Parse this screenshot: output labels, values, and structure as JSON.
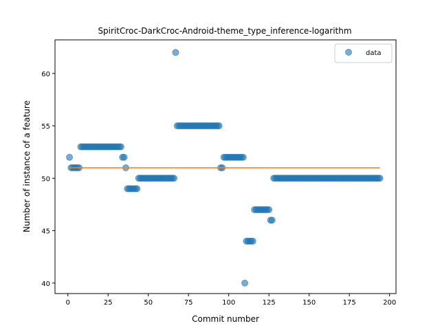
{
  "chart_data": {
    "type": "scatter",
    "title": "SpiritCroc-DarkCroc-Android-theme_type_inference-logarithm",
    "xlabel": "Commit number",
    "ylabel": "Number of instance of a feature",
    "xlim": [
      -8,
      204
    ],
    "ylim": [
      39.0,
      63.2
    ],
    "xticks": [
      0,
      25,
      50,
      75,
      100,
      125,
      150,
      175,
      200
    ],
    "yticks": [
      40,
      45,
      50,
      55,
      60
    ],
    "legend": {
      "position": "top-right",
      "entries": [
        "data"
      ]
    },
    "colors": {
      "scatter": "#1f77b4",
      "line": "#ff7f0e"
    },
    "series": [
      {
        "name": "data",
        "kind": "scatter",
        "runs": [
          {
            "from": 1,
            "to": 1,
            "y": 52
          },
          {
            "from": 2,
            "to": 7,
            "y": 51
          },
          {
            "from": 8,
            "to": 33,
            "y": 53
          },
          {
            "from": 34,
            "to": 35,
            "y": 52
          },
          {
            "from": 36,
            "to": 36,
            "y": 51
          },
          {
            "from": 37,
            "to": 43,
            "y": 49
          },
          {
            "from": 44,
            "to": 66,
            "y": 50
          },
          {
            "from": 67,
            "to": 67,
            "y": 62
          },
          {
            "from": 68,
            "to": 94,
            "y": 55
          },
          {
            "from": 95,
            "to": 96,
            "y": 51
          },
          {
            "from": 97,
            "to": 109,
            "y": 52
          },
          {
            "from": 110,
            "to": 110,
            "y": 40
          },
          {
            "from": 111,
            "to": 115,
            "y": 44
          },
          {
            "from": 116,
            "to": 125,
            "y": 47
          },
          {
            "from": 126,
            "to": 127,
            "y": 46
          },
          {
            "from": 128,
            "to": 194,
            "y": 50
          }
        ]
      },
      {
        "kind": "line",
        "x": [
          1,
          194
        ],
        "y": [
          51,
          51
        ]
      }
    ]
  }
}
